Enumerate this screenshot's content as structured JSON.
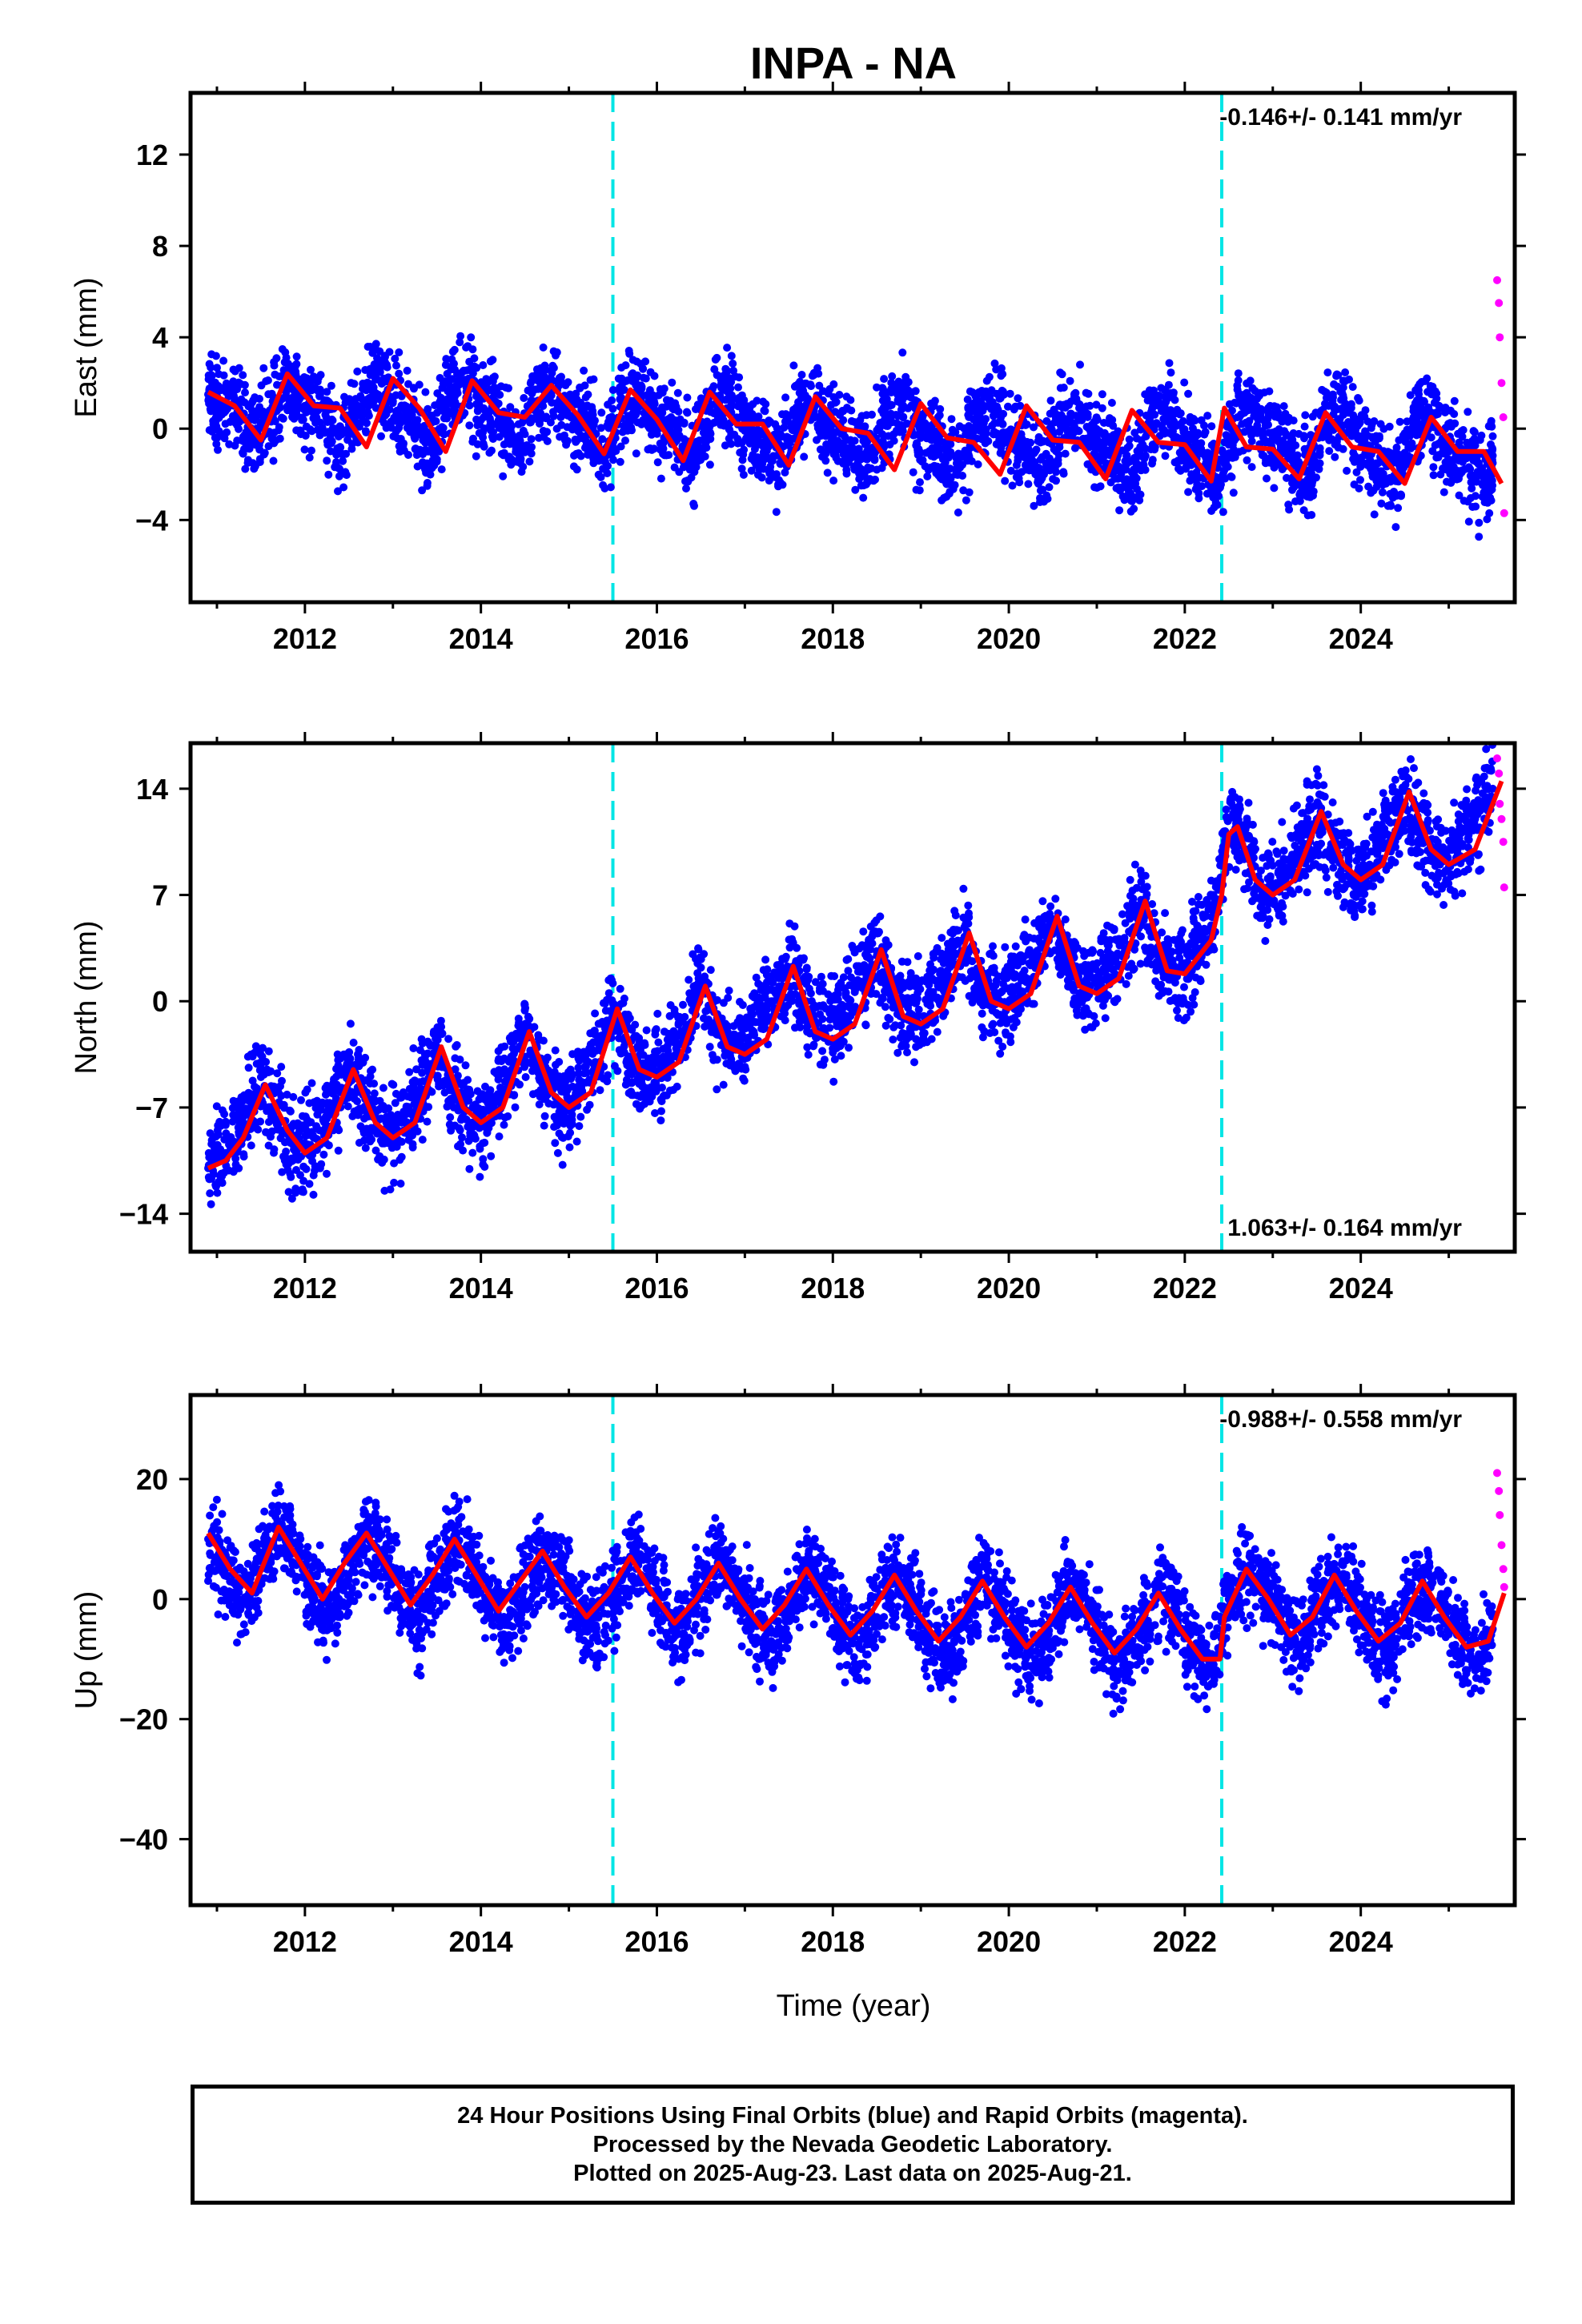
{
  "title": "INPA - NA",
  "colors": {
    "final": "#0000ff",
    "rapid": "#ff00ff",
    "model": "#ff0000",
    "breaks": "#00e5e5",
    "frame": "#000000"
  },
  "x_ticks": [
    "2012",
    "2014",
    "2016",
    "2018",
    "2020",
    "2022",
    "2024"
  ],
  "xlabel": "Time (year)",
  "caption": [
    "24 Hour Positions Using Final Orbits (blue) and Rapid Orbits (magenta).",
    "Processed by the Nevada Geodetic Laboratory.",
    "Plotted on 2025-Aug-23. Last data on 2025-Aug-21."
  ],
  "chart_data": [
    {
      "type": "scatter",
      "ylabel": "East (mm)",
      "rate": "-0.146+/- 0.141 mm/yr",
      "rate_position": "top-right",
      "xlim": [
        2010.7,
        2025.75
      ],
      "ylim": [
        -7.6,
        14.7
      ],
      "yticks": [
        -4,
        0,
        4,
        8,
        12
      ],
      "breaks": [
        2015.5,
        2022.42
      ],
      "series": [
        {
          "name": "Final Orbits (blue)",
          "x": [
            2010.9,
            2011.0,
            2011.2,
            2011.4,
            2011.6,
            2011.8,
            2012.0,
            2012.2,
            2012.4,
            2012.6,
            2012.8,
            2013.0,
            2013.2,
            2013.4,
            2013.6,
            2013.8,
            2014.0,
            2014.2,
            2014.4,
            2014.6,
            2014.8,
            2015.0,
            2015.2,
            2015.4,
            2015.6,
            2015.8,
            2016.0,
            2016.2,
            2016.4,
            2016.6,
            2016.8,
            2017.0,
            2017.2,
            2017.4,
            2017.6,
            2017.8,
            2018.0,
            2018.2,
            2018.4,
            2018.6,
            2018.8,
            2019.0,
            2019.2,
            2019.4,
            2019.6,
            2019.8,
            2020.0,
            2020.2,
            2020.4,
            2020.6,
            2020.8,
            2021.0,
            2021.2,
            2021.4,
            2021.6,
            2021.8,
            2022.0,
            2022.2,
            2022.4,
            2022.6,
            2022.8,
            2023.0,
            2023.2,
            2023.4,
            2023.6,
            2023.8,
            2024.0,
            2024.2,
            2024.4,
            2024.6,
            2024.8,
            2025.0,
            2025.2,
            2025.4,
            2025.5
          ],
          "y": [
            1.5,
            1.0,
            1.2,
            -0.5,
            0.8,
            2.3,
            1.0,
            0.9,
            -0.8,
            1.0,
            2.2,
            1.2,
            0.5,
            -1.0,
            1.0,
            2.0,
            0.9,
            0.7,
            -0.9,
            1.0,
            1.8,
            0.6,
            0.4,
            -1.2,
            1.2,
            1.5,
            0.2,
            0.3,
            -1.4,
            0.8,
            1.3,
            -0.1,
            -0.2,
            -1.5,
            0.8,
            1.2,
            -0.3,
            -0.5,
            -1.8,
            0.6,
            1.0,
            -0.4,
            -0.8,
            -2.0,
            0.4,
            1.0,
            -0.3,
            -0.9,
            -2.0,
            0.3,
            0.9,
            -0.5,
            -1.0,
            -2.2,
            0.4,
            0.8,
            -0.6,
            -1.1,
            -2.3,
            0.5,
            0.6,
            -0.4,
            -1.2,
            -2.2,
            0.6,
            0.6,
            -0.8,
            -1.5,
            -2.3,
            0.5,
            0.4,
            -1.0,
            -1.3,
            -2.4,
            -1.5
          ]
        },
        {
          "name": "Rapid Orbits (magenta)",
          "x": [
            2025.55,
            2025.57,
            2025.58,
            2025.6,
            2025.62,
            2025.63
          ],
          "y": [
            6.5,
            5.5,
            4.0,
            2.0,
            0.5,
            -3.7
          ]
        },
        {
          "name": "Model",
          "x": [
            2010.9,
            2011.2,
            2011.5,
            2011.8,
            2012.1,
            2012.4,
            2012.7,
            2013.0,
            2013.3,
            2013.6,
            2013.9,
            2014.2,
            2014.5,
            2014.8,
            2015.1,
            2015.4,
            2015.7,
            2016.0,
            2016.3,
            2016.6,
            2016.9,
            2017.2,
            2017.5,
            2017.8,
            2018.1,
            2018.4,
            2018.7,
            2019.0,
            2019.3,
            2019.6,
            2019.9,
            2020.2,
            2020.5,
            2020.8,
            2021.1,
            2021.4,
            2021.7,
            2022.0,
            2022.3,
            2022.45,
            2022.7,
            2023.0,
            2023.3,
            2023.6,
            2023.9,
            2024.2,
            2024.5,
            2024.8,
            2025.1,
            2025.4,
            2025.6
          ],
          "y": [
            1.6,
            1.0,
            -0.5,
            2.4,
            1.0,
            0.9,
            -0.8,
            2.2,
            0.9,
            -1.0,
            2.1,
            0.7,
            0.5,
            1.9,
            0.6,
            -1.1,
            1.7,
            0.4,
            -1.4,
            1.6,
            0.2,
            0.2,
            -1.6,
            1.4,
            0.0,
            -0.2,
            -1.8,
            1.1,
            -0.4,
            -0.6,
            -2.0,
            1.0,
            -0.5,
            -0.6,
            -2.2,
            0.8,
            -0.6,
            -0.7,
            -2.3,
            0.9,
            -0.8,
            -0.9,
            -2.2,
            0.7,
            -0.8,
            -1.0,
            -2.4,
            0.5,
            -1.0,
            -1.0,
            -2.4
          ]
        }
      ]
    },
    {
      "type": "scatter",
      "ylabel": "North (mm)",
      "rate": "1.063+/- 0.164 mm/yr",
      "rate_position": "bottom-right",
      "xlim": [
        2010.7,
        2025.75
      ],
      "ylim": [
        -16.5,
        17
      ],
      "yticks": [
        -14,
        -7,
        0,
        7,
        14
      ],
      "breaks": [
        2015.5,
        2022.42
      ],
      "series": [
        {
          "name": "Final Orbits (blue)",
          "x": [
            2010.9,
            2011.1,
            2011.3,
            2011.5,
            2011.7,
            2011.9,
            2012.1,
            2012.3,
            2012.5,
            2012.7,
            2012.9,
            2013.1,
            2013.3,
            2013.5,
            2013.7,
            2013.9,
            2014.1,
            2014.3,
            2014.5,
            2014.7,
            2014.9,
            2015.1,
            2015.3,
            2015.5,
            2015.7,
            2015.9,
            2016.1,
            2016.3,
            2016.5,
            2016.7,
            2016.9,
            2017.1,
            2017.3,
            2017.5,
            2017.7,
            2017.9,
            2018.1,
            2018.3,
            2018.5,
            2018.7,
            2018.9,
            2019.1,
            2019.3,
            2019.5,
            2019.7,
            2019.9,
            2020.1,
            2020.3,
            2020.5,
            2020.7,
            2020.9,
            2021.1,
            2021.3,
            2021.5,
            2021.7,
            2021.9,
            2022.1,
            2022.3,
            2022.5,
            2022.7,
            2022.9,
            2023.1,
            2023.3,
            2023.5,
            2023.7,
            2023.9,
            2024.1,
            2024.3,
            2024.5,
            2024.7,
            2024.9,
            2025.1,
            2025.3,
            2025.5
          ],
          "y": [
            -11,
            -10,
            -8,
            -5,
            -8,
            -10,
            -9,
            -7,
            -4,
            -7,
            -9,
            -8,
            -6,
            -3,
            -6,
            -8,
            -7,
            -5,
            -2,
            -5,
            -7,
            -6,
            -4,
            -1,
            -4,
            -5,
            -4,
            -2,
            1,
            -2,
            -3,
            -2,
            0,
            2,
            0,
            -2,
            -1,
            1,
            3,
            0,
            -1,
            0,
            2,
            4,
            1,
            0,
            1,
            3,
            5,
            2,
            1,
            2,
            4,
            6,
            3,
            2,
            3,
            5,
            12,
            10,
            7,
            8,
            10,
            12,
            10,
            8,
            9,
            11,
            13,
            11,
            9,
            10,
            12,
            14
          ]
        },
        {
          "name": "Rapid Orbits (magenta)",
          "x": [
            2025.55,
            2025.57,
            2025.58,
            2025.6,
            2025.62,
            2025.63
          ],
          "y": [
            16,
            15,
            13,
            12,
            10.5,
            7.5
          ]
        },
        {
          "name": "Model",
          "x": [
            2010.9,
            2011.1,
            2011.3,
            2011.55,
            2011.8,
            2012.0,
            2012.25,
            2012.55,
            2012.8,
            2013.0,
            2013.25,
            2013.55,
            2013.8,
            2014.0,
            2014.25,
            2014.55,
            2014.8,
            2015.0,
            2015.25,
            2015.55,
            2015.8,
            2016.0,
            2016.25,
            2016.55,
            2016.8,
            2017.0,
            2017.25,
            2017.55,
            2017.8,
            2018.0,
            2018.25,
            2018.55,
            2018.8,
            2019.0,
            2019.25,
            2019.55,
            2019.8,
            2020.0,
            2020.25,
            2020.55,
            2020.8,
            2021.0,
            2021.25,
            2021.55,
            2021.8,
            2022.0,
            2022.3,
            2022.42,
            2022.5,
            2022.6,
            2022.8,
            2023.0,
            2023.25,
            2023.55,
            2023.8,
            2024.0,
            2024.25,
            2024.55,
            2024.8,
            2025.0,
            2025.3,
            2025.6
          ],
          "y": [
            -11,
            -10.5,
            -9,
            -5.5,
            -8.5,
            -10,
            -9,
            -4.5,
            -8,
            -9,
            -8,
            -3,
            -7,
            -8,
            -7,
            -2,
            -6,
            -7,
            -6,
            -0.5,
            -4.5,
            -5,
            -4,
            1,
            -3,
            -3.5,
            -2.5,
            2.3,
            -2,
            -2.5,
            -1.5,
            3.4,
            -1,
            -1.5,
            -0.5,
            4.5,
            0,
            -0.5,
            0.5,
            5.6,
            1,
            0.5,
            1.5,
            6.6,
            2,
            1.8,
            4,
            7,
            11,
            11.5,
            8,
            7,
            8,
            12.5,
            9,
            8,
            9,
            13.8,
            10,
            9,
            10,
            14.5
          ]
        }
      ]
    },
    {
      "type": "scatter",
      "ylabel": "Up (mm)",
      "rate": "-0.988+/- 0.558 mm/yr",
      "rate_position": "top-right",
      "xlim": [
        2010.7,
        2025.75
      ],
      "ylim": [
        -51,
        34
      ],
      "yticks": [
        -40,
        -20,
        0,
        20
      ],
      "breaks": [
        2015.5,
        2022.42
      ],
      "series": [
        {
          "name": "Final Orbits (blue)",
          "x": [
            2010.9,
            2011.1,
            2011.3,
            2011.5,
            2011.7,
            2011.9,
            2012.1,
            2012.3,
            2012.5,
            2012.7,
            2012.9,
            2013.1,
            2013.3,
            2013.5,
            2013.7,
            2013.9,
            2014.1,
            2014.3,
            2014.5,
            2014.7,
            2014.9,
            2015.1,
            2015.3,
            2015.5,
            2015.7,
            2015.9,
            2016.1,
            2016.3,
            2016.5,
            2016.7,
            2016.9,
            2017.1,
            2017.3,
            2017.5,
            2017.7,
            2017.9,
            2018.1,
            2018.3,
            2018.5,
            2018.7,
            2018.9,
            2019.1,
            2019.3,
            2019.5,
            2019.7,
            2019.9,
            2020.1,
            2020.3,
            2020.5,
            2020.7,
            2020.9,
            2021.1,
            2021.3,
            2021.5,
            2021.7,
            2021.9,
            2022.1,
            2022.3,
            2022.5,
            2022.7,
            2022.9,
            2023.1,
            2023.3,
            2023.5,
            2023.7,
            2023.9,
            2024.1,
            2024.3,
            2024.5,
            2024.7,
            2024.9,
            2025.1,
            2025.3,
            2025.5
          ],
          "y": [
            10,
            4,
            0,
            5,
            12,
            8,
            1,
            -2,
            4,
            11,
            7,
            0,
            -3,
            3,
            10,
            6,
            -1,
            -4,
            2,
            8,
            5,
            -2,
            -5,
            0,
            7,
            4,
            -3,
            -6,
            0,
            6,
            3,
            -4,
            -7,
            -2,
            5,
            2,
            -5,
            -8,
            -3,
            4,
            1,
            -6,
            -9,
            -4,
            3,
            0,
            -7,
            -10,
            -4,
            2,
            -1,
            -8,
            -11,
            -5,
            1,
            -2,
            -9,
            -12,
            0,
            5,
            2,
            -4,
            -8,
            -2,
            4,
            1,
            -5,
            -9,
            -3,
            3,
            0,
            -6,
            -10,
            -5
          ]
        },
        {
          "name": "Rapid Orbits (magenta)",
          "x": [
            2025.55,
            2025.57,
            2025.58,
            2025.6,
            2025.62,
            2025.63
          ],
          "y": [
            21,
            18,
            14,
            9,
            5,
            2
          ]
        },
        {
          "name": "Model",
          "x": [
            2010.9,
            2011.15,
            2011.4,
            2011.7,
            2011.95,
            2012.2,
            2012.45,
            2012.7,
            2012.95,
            2013.2,
            2013.45,
            2013.7,
            2013.95,
            2014.2,
            2014.45,
            2014.7,
            2014.95,
            2015.2,
            2015.45,
            2015.7,
            2015.95,
            2016.2,
            2016.45,
            2016.7,
            2016.95,
            2017.2,
            2017.45,
            2017.7,
            2017.95,
            2018.2,
            2018.45,
            2018.7,
            2018.95,
            2019.2,
            2019.45,
            2019.7,
            2019.95,
            2020.2,
            2020.45,
            2020.7,
            2020.95,
            2021.2,
            2021.45,
            2021.7,
            2021.95,
            2022.2,
            2022.4,
            2022.45,
            2022.7,
            2022.95,
            2023.2,
            2023.45,
            2023.7,
            2023.95,
            2024.2,
            2024.45,
            2024.7,
            2024.95,
            2025.2,
            2025.45,
            2025.63
          ],
          "y": [
            11,
            5,
            1,
            12,
            6,
            0,
            6,
            11,
            5,
            -1,
            4,
            10,
            4,
            -2,
            3,
            8,
            2,
            -3,
            1,
            7,
            1,
            -4,
            0,
            6,
            0,
            -5,
            -1,
            5,
            -1,
            -6,
            -2,
            4,
            -2,
            -7,
            -3,
            3,
            -3,
            -8,
            -4,
            2,
            -4,
            -9,
            -5,
            1,
            -5,
            -10,
            -10,
            -3,
            5,
            0,
            -6,
            -3,
            4,
            -2,
            -7,
            -4,
            3,
            -3,
            -8,
            -7,
            1
          ]
        }
      ]
    }
  ]
}
